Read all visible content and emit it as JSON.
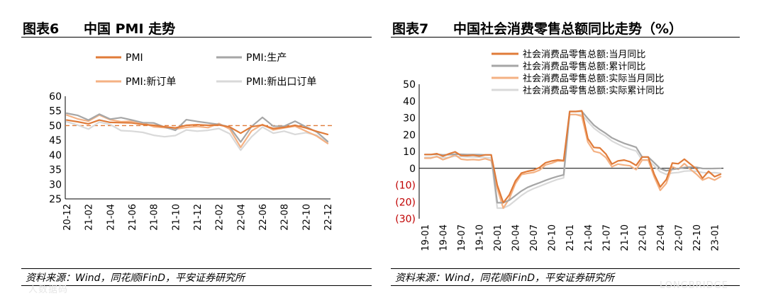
{
  "chart6": {
    "title_label": "图表6",
    "title_text": "中国 PMI 走势",
    "source": "资料来源：Wind，同花顺iFinD，平安证券研究所"
  },
  "chart7": {
    "title_label": "图表7",
    "title_text": "中国社会消费零售总额同比走势（%）",
    "source": "资料来源：Wind，同花顺iFinD，平安证券研究所"
  },
  "watermarks": {
    "left": "人数据码",
    "right": "LONGBRIDGE"
  },
  "chart_data": [
    {
      "type": "line",
      "categories": [
        "20-12",
        "21-01",
        "21-02",
        "21-03",
        "21-04",
        "21-05",
        "21-06",
        "21-07",
        "21-08",
        "21-09",
        "21-10",
        "21-11",
        "21-12",
        "22-01",
        "22-02",
        "22-03",
        "22-04",
        "22-05",
        "22-06",
        "22-07",
        "22-08",
        "22-09",
        "22-10",
        "22-11",
        "22-12"
      ],
      "tick_labels": [
        "20-12",
        "21-02",
        "21-04",
        "21-06",
        "21-08",
        "21-10",
        "21-12",
        "22-02",
        "22-04",
        "22-06",
        "22-08",
        "22-10",
        "22-12"
      ],
      "ylim": [
        25,
        60
      ],
      "yticks": [
        "25",
        "30",
        "35",
        "40",
        "45",
        "50",
        "55",
        "60"
      ],
      "reference_line": 50,
      "legend_position": "top",
      "series": [
        {
          "name": "PMI",
          "color": "#e07b39",
          "width": 2.2,
          "values": [
            51.9,
            51.3,
            50.6,
            51.9,
            51.1,
            51.0,
            50.9,
            50.4,
            50.1,
            49.6,
            49.2,
            50.1,
            50.3,
            50.1,
            50.2,
            49.5,
            47.4,
            49.6,
            50.2,
            49.0,
            49.4,
            50.1,
            49.2,
            48.0,
            47.0
          ]
        },
        {
          "name": "PMI:生产",
          "color": "#a6a6a6",
          "width": 2.2,
          "values": [
            54.2,
            53.5,
            51.9,
            53.9,
            52.2,
            52.7,
            51.9,
            51.0,
            50.9,
            49.5,
            48.4,
            52.0,
            51.4,
            50.9,
            50.4,
            49.5,
            44.4,
            49.7,
            52.8,
            49.8,
            49.8,
            51.5,
            49.6,
            47.8,
            44.6
          ]
        },
        {
          "name": "PMI:新订单",
          "color": "#f4b183",
          "width": 2.2,
          "values": [
            53.6,
            52.3,
            51.5,
            53.6,
            52.0,
            51.3,
            51.5,
            50.9,
            49.6,
            49.3,
            48.8,
            49.4,
            49.7,
            49.3,
            50.7,
            48.8,
            42.6,
            48.2,
            50.4,
            48.5,
            49.2,
            49.8,
            48.1,
            46.4,
            43.9
          ]
        },
        {
          "name": "PMI:新出口订单",
          "color": "#d9d9d9",
          "width": 2.2,
          "values": [
            51.3,
            50.2,
            48.8,
            51.2,
            50.4,
            48.3,
            48.1,
            47.7,
            46.7,
            46.2,
            46.6,
            48.5,
            48.1,
            48.4,
            49.0,
            47.2,
            41.6,
            46.2,
            49.5,
            47.4,
            48.1,
            47.0,
            47.6,
            46.7,
            44.2
          ]
        }
      ]
    },
    {
      "type": "line",
      "categories": [
        "19-01",
        "19-02",
        "19-03",
        "19-04",
        "19-05",
        "19-06",
        "19-07",
        "19-08",
        "19-09",
        "19-10",
        "19-11",
        "19-12",
        "20-01",
        "20-02",
        "20-03",
        "20-04",
        "20-05",
        "20-06",
        "20-07",
        "20-08",
        "20-09",
        "20-10",
        "20-11",
        "20-12",
        "21-01",
        "21-02",
        "21-03",
        "21-04",
        "21-05",
        "21-06",
        "21-07",
        "21-08",
        "21-09",
        "21-10",
        "21-11",
        "21-12",
        "22-01",
        "22-02",
        "22-03",
        "22-04",
        "22-05",
        "22-06",
        "22-07",
        "22-08",
        "22-09",
        "22-10",
        "22-11",
        "22-12",
        "23-01",
        "23-02"
      ],
      "tick_labels": [
        "19-01",
        "19-04",
        "19-07",
        "19-10",
        "20-01",
        "20-04",
        "20-07",
        "20-10",
        "21-01",
        "21-04",
        "21-07",
        "21-10",
        "22-01",
        "22-04",
        "22-07",
        "22-10",
        "23-01"
      ],
      "ylim": [
        -30,
        50
      ],
      "yticks": [
        "(30)",
        "(20)",
        "(10)",
        "0",
        "10",
        "20",
        "30",
        "40",
        "50"
      ],
      "legend_position": "top-left",
      "series": [
        {
          "name": "社会消费品零售总额:当月同比",
          "color": "#e07b39",
          "width": 2.2,
          "values": [
            8.2,
            8.2,
            8.7,
            7.2,
            8.6,
            9.8,
            7.6,
            7.5,
            7.8,
            7.2,
            8.0,
            8.0,
            -10.0,
            -20.5,
            -15.8,
            -7.5,
            -2.8,
            -1.8,
            -1.1,
            0.5,
            3.3,
            4.3,
            5.0,
            4.6,
            33.8,
            33.8,
            34.2,
            17.7,
            12.4,
            12.1,
            8.5,
            2.5,
            4.4,
            4.9,
            3.9,
            1.7,
            6.7,
            6.7,
            -3.5,
            -11.1,
            -6.7,
            3.1,
            2.7,
            5.4,
            2.5,
            -0.5,
            -5.9,
            -1.8,
            -5.0,
            -3.5
          ]
        },
        {
          "name": "社会消费品零售总额:累计同比",
          "color": "#a6a6a6",
          "width": 2.2,
          "values": [
            8.2,
            8.2,
            8.3,
            8.0,
            8.1,
            8.4,
            8.3,
            8.2,
            8.2,
            8.1,
            8.0,
            8.0,
            -20.5,
            -20.5,
            -19.0,
            -16.2,
            -13.5,
            -11.4,
            -9.9,
            -8.6,
            -7.2,
            -5.9,
            -4.8,
            -3.9,
            33.8,
            33.8,
            33.9,
            29.6,
            25.7,
            23.0,
            20.7,
            18.1,
            16.4,
            14.9,
            13.7,
            12.5,
            6.7,
            6.7,
            3.3,
            -0.2,
            -1.5,
            -0.7,
            -0.2,
            0.5,
            0.7,
            0.6,
            -0.1,
            -0.2,
            -0.1,
            0.0
          ]
        },
        {
          "name": "社会消费品零售总额:实际当月同比",
          "color": "#f4b183",
          "width": 2.2,
          "values": [
            6.0,
            6.0,
            7.0,
            5.1,
            6.4,
            8.0,
            5.4,
            5.0,
            5.2,
            4.9,
            5.7,
            4.6,
            -12.0,
            -23.7,
            -18.1,
            -9.1,
            -3.7,
            -3.0,
            -2.5,
            -1.1,
            2.0,
            3.0,
            4.4,
            4.3,
            32.0,
            32.0,
            31.0,
            15.6,
            10.1,
            9.2,
            6.4,
            0.9,
            2.5,
            1.9,
            1.5,
            -0.8,
            4.9,
            4.9,
            -5.1,
            -13.1,
            -9.0,
            0.9,
            -0.6,
            2.8,
            -0.6,
            -3.5,
            -7.0,
            -5.5,
            -7.0,
            -5.0
          ]
        },
        {
          "name": "社会消费品零售总额:实际累计同比",
          "color": "#d9d9d9",
          "width": 2.2,
          "values": [
            6.5,
            6.5,
            6.8,
            6.4,
            6.5,
            7.2,
            7.0,
            6.8,
            6.8,
            6.6,
            6.5,
            6.0,
            -23.7,
            -23.7,
            -22.0,
            -19.1,
            -16.2,
            -13.8,
            -12.1,
            -10.7,
            -9.3,
            -7.9,
            -6.6,
            -5.7,
            32.0,
            32.0,
            31.9,
            27.8,
            23.9,
            21.2,
            19.0,
            16.2,
            14.4,
            12.7,
            11.4,
            10.3,
            4.9,
            4.9,
            1.4,
            -2.1,
            -3.6,
            -2.8,
            -2.5,
            -1.7,
            -1.5,
            -1.8,
            -2.5,
            -2.8,
            -2.6,
            -3.0
          ]
        }
      ]
    }
  ]
}
